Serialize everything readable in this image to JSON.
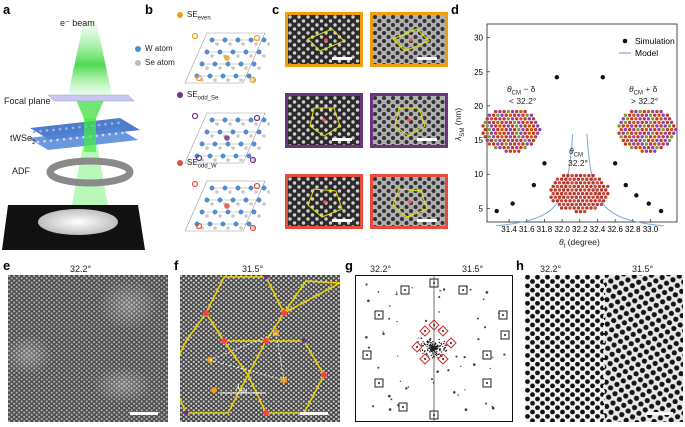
{
  "figure": {
    "panel_labels": {
      "a": "a",
      "b": "b",
      "c": "c",
      "d": "d",
      "e": "e",
      "f": "f",
      "g": "g",
      "h": "h"
    }
  },
  "panel_a": {
    "beam_label": "e⁻ beam",
    "focal_plane": "Focal plane",
    "sample": "tWSe",
    "sample_sub": "2",
    "adf": "ADF",
    "empad": "EMPAD"
  },
  "panel_b": {
    "legend": [
      {
        "label": "W atom",
        "color": "#4a90d9"
      },
      {
        "label": "Se atom",
        "color": "#bbbbbb"
      }
    ],
    "structures": [
      {
        "label": "SE",
        "sub": "even",
        "color": "#f39c12"
      },
      {
        "label": "SE",
        "sub": "odd_Se",
        "color": "#6c3483"
      },
      {
        "label": "SE",
        "sub": "odd_W",
        "color": "#e74c3c"
      }
    ]
  },
  "panel_c": {
    "row_colors": [
      "#f39c12",
      "#6c3483",
      "#e74c3c"
    ]
  },
  "panel_d": {
    "legend": {
      "simulation": "Simulation",
      "model": "Model"
    },
    "xlabel": "θ",
    "xlabel_sub": "t",
    "xlabel_unit": " (degree)",
    "ylabel": "λ",
    "ylabel_sub": "SM",
    "ylabel_unit": " (nm)",
    "insets": {
      "left_line1": "θ",
      "left_sub": "CM",
      "left_line1_suffix": " − δ",
      "left_line2": "< 32.2°",
      "center_line1": "θ",
      "center_sub": "CM",
      "center_line2": "32.2°",
      "right_line1": "θ",
      "right_sub": "CM",
      "right_line1_suffix": " + δ",
      "right_line2": "> 32.2°"
    }
  },
  "chart_data": {
    "type": "scatter",
    "xlabel": "θt (degree)",
    "ylabel": "λSM (nm)",
    "xlim": [
      31.15,
      33.3
    ],
    "ylim": [
      3,
      32
    ],
    "xticks": [
      31.4,
      31.6,
      31.8,
      32.0,
      32.2,
      32.4,
      32.6,
      32.8,
      33.0
    ],
    "yticks": [
      5,
      10,
      15,
      20,
      25,
      30
    ],
    "asymptote": 32.2,
    "series": [
      {
        "name": "Simulation",
        "x": [
          31.26,
          31.44,
          31.68,
          31.8,
          31.94,
          32.46,
          32.6,
          32.72,
          32.84,
          32.98,
          33.12
        ],
        "y": [
          4.6,
          5.7,
          8.4,
          11.6,
          24.2,
          24.2,
          11.6,
          8.4,
          6.9,
          5.7,
          4.6
        ]
      },
      {
        "name": "Model",
        "type": "line"
      }
    ]
  },
  "panel_e": {
    "angle": "32.2°"
  },
  "panel_f": {
    "angle": "31.5°",
    "lambda": "λ",
    "lambda_sub": "SM"
  },
  "panel_g": {
    "angle_left": "32.2°",
    "angle_right": "31.5°"
  },
  "panel_h": {
    "angle_left": "32.2°",
    "angle_right": "31.5°"
  }
}
